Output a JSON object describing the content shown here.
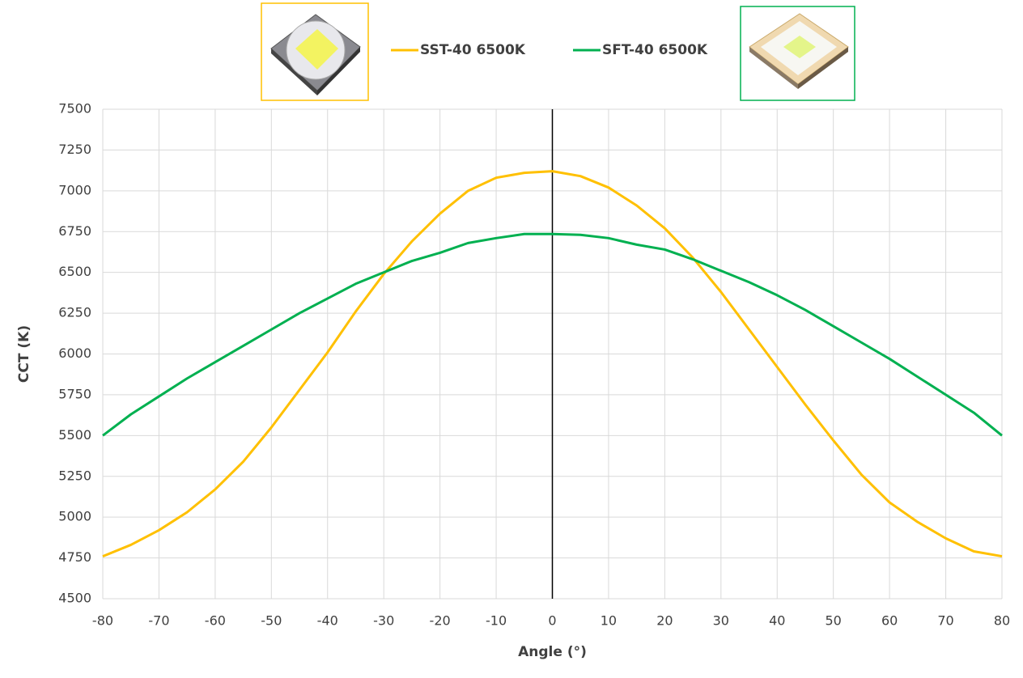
{
  "chart_data": {
    "type": "line",
    "x": [
      -80,
      -75,
      -70,
      -65,
      -60,
      -55,
      -50,
      -45,
      -40,
      -35,
      -30,
      -25,
      -20,
      -15,
      -10,
      -5,
      0,
      5,
      10,
      15,
      20,
      25,
      30,
      35,
      40,
      45,
      50,
      55,
      60,
      65,
      70,
      75,
      80
    ],
    "series": [
      {
        "name": "SST-40 6500K",
        "color": "#FFC000",
        "values": [
          4760,
          4830,
          4920,
          5030,
          5170,
          5340,
          5550,
          5780,
          6010,
          6260,
          6490,
          6690,
          6860,
          7000,
          7080,
          7110,
          7120,
          7090,
          7020,
          6910,
          6770,
          6590,
          6380,
          6150,
          5920,
          5690,
          5470,
          5260,
          5090,
          4970,
          4870,
          4790,
          4760
        ]
      },
      {
        "name": "SFT-40 6500K",
        "color": "#00B050",
        "values": [
          5500,
          5630,
          5740,
          5850,
          5950,
          6050,
          6150,
          6250,
          6340,
          6430,
          6500,
          6570,
          6620,
          6680,
          6710,
          6735,
          6735,
          6730,
          6710,
          6670,
          6640,
          6580,
          6510,
          6440,
          6360,
          6270,
          6170,
          6070,
          5970,
          5860,
          5750,
          5640,
          5500
        ]
      }
    ],
    "x_label": "Angle (°)",
    "y_label": "CCT (K)",
    "xlim": [
      -80,
      80
    ],
    "ylim": [
      4500,
      7500
    ],
    "xticks": [
      -80,
      -70,
      -60,
      -50,
      -40,
      -30,
      -20,
      -10,
      0,
      10,
      20,
      30,
      40,
      50,
      60,
      70,
      80
    ],
    "yticks": [
      4500,
      4750,
      5000,
      5250,
      5500,
      5750,
      6000,
      6250,
      6500,
      6750,
      7000,
      7250,
      7500
    ],
    "reference_line_x": 0,
    "reference_line_color": "#000000",
    "grid": true,
    "legend": "top"
  }
}
